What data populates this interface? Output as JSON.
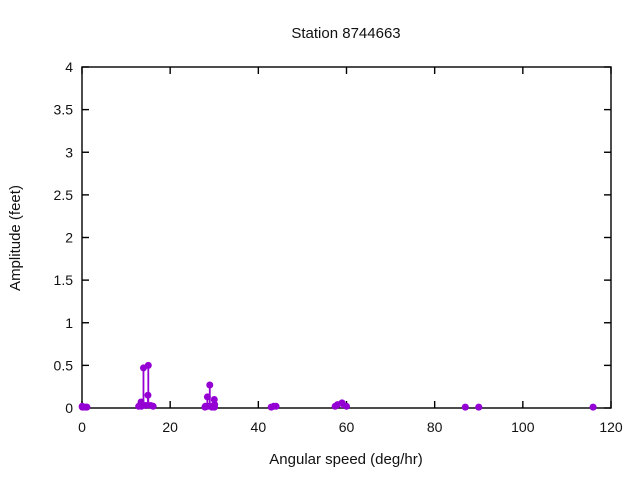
{
  "chart_data": {
    "type": "scatter",
    "style": "impulses-with-points",
    "title": "Station 8744663",
    "xlabel": "Angular speed (deg/hr)",
    "ylabel": "Amplitude (feet)",
    "xlim": [
      0,
      120
    ],
    "ylim": [
      0,
      4
    ],
    "xticks": [
      "0",
      "20",
      "40",
      "60",
      "80",
      "100",
      "120"
    ],
    "xtick_values": [
      0,
      20,
      40,
      60,
      80,
      100,
      120
    ],
    "yticks": [
      "0",
      "0.5",
      "1",
      "1.5",
      "2",
      "2.5",
      "3",
      "3.5",
      "4"
    ],
    "ytick_values": [
      0,
      0.5,
      1,
      1.5,
      2,
      2.5,
      3,
      3.5,
      4
    ],
    "grid": false,
    "legend_position": "none",
    "point_color": "#9400d3",
    "frame_color": "#000000",
    "background_color": "#ffffff",
    "series": [
      {
        "name": "amplitude",
        "x": [
          0.0411,
          0.0821,
          0.5444,
          1.0159,
          1.098,
          12.8543,
          13.3987,
          13.4715,
          13.943,
          14.4967,
          14.9589,
          15.0411,
          15.5854,
          16.1391,
          27.8954,
          27.9682,
          28.4397,
          28.5126,
          28.9841,
          29.4556,
          29.5285,
          29.9589,
          30.0,
          30.0411,
          30.0821,
          42.9271,
          43.4762,
          44.0252,
          57.4238,
          57.9682,
          58.9841,
          60.0,
          86.9523,
          90.0,
          115.9364
        ],
        "y": [
          0.02,
          0.01,
          0.01,
          0.01,
          0.01,
          0.02,
          0.07,
          0.02,
          0.47,
          0.03,
          0.15,
          0.5,
          0.03,
          0.02,
          0.01,
          0.02,
          0.13,
          0.02,
          0.27,
          0.01,
          0.02,
          0.01,
          0.1,
          0.01,
          0.04,
          0.01,
          0.02,
          0.02,
          0.02,
          0.04,
          0.06,
          0.02,
          0.01,
          0.01,
          0.01
        ]
      }
    ]
  }
}
